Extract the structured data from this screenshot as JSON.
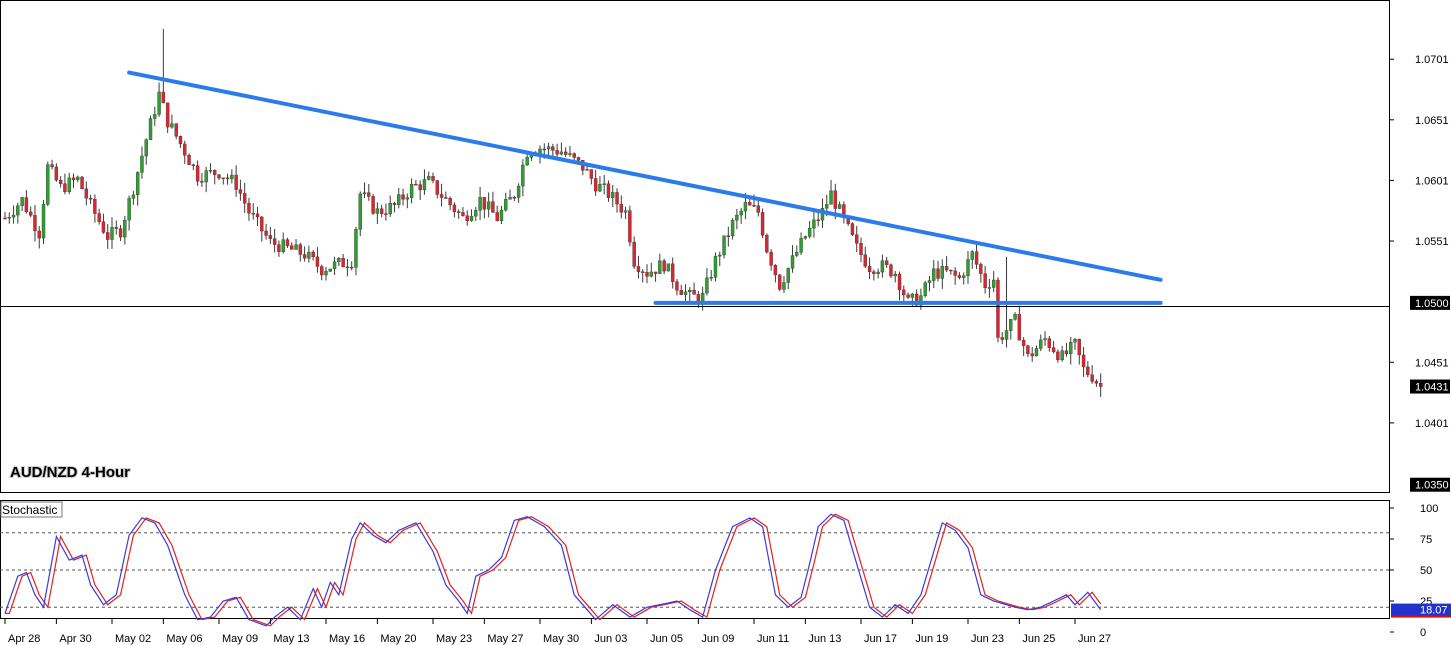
{
  "chart_data": {
    "type": "candlestick",
    "title": "AUD/NZD 4-Hour",
    "price_axis": {
      "ticks": [
        "1.0701",
        "1.0651",
        "1.0601",
        "1.0551",
        "1.0451",
        "1.0401"
      ],
      "tick_values": [
        1.0701,
        1.0651,
        1.0601,
        1.0551,
        1.0451,
        1.0401
      ],
      "ylim": [
        1.0344,
        1.0749
      ],
      "boxes": [
        {
          "label": "1.0500",
          "value": 1.05,
          "style": "horizontal-line"
        },
        {
          "label": "1.0431",
          "value": 1.0431,
          "style": "last-price"
        },
        {
          "label": "1.0350",
          "value": 1.035,
          "style": "panel-bottom"
        }
      ]
    },
    "x_axis": {
      "labels": [
        "Apr 28",
        "Apr 30",
        "May 02",
        "May 06",
        "May 09",
        "May 13",
        "May 16",
        "May 20",
        "May 23",
        "May 27",
        "May 30",
        "Jun 03",
        "Jun 05",
        "Jun 09",
        "Jun 11",
        "Jun 13",
        "Jun 17",
        "Jun 19",
        "Jun 23",
        "Jun 25",
        "Jun 27"
      ],
      "bar_index": [
        0,
        12,
        25,
        37,
        50,
        62,
        75,
        87,
        100,
        112,
        125,
        137,
        150,
        162,
        175,
        187,
        200,
        212,
        225,
        237,
        250
      ]
    },
    "close_path": [
      [
        0,
        1.057
      ],
      [
        4,
        1.0585
      ],
      [
        8,
        1.0558
      ],
      [
        10,
        1.0612
      ],
      [
        13,
        1.0595
      ],
      [
        17,
        1.0602
      ],
      [
        20,
        1.058
      ],
      [
        24,
        1.0555
      ],
      [
        27,
        1.056
      ],
      [
        30,
        1.0595
      ],
      [
        33,
        1.0635
      ],
      [
        36,
        1.0672
      ],
      [
        38,
        1.065
      ],
      [
        42,
        1.0625
      ],
      [
        45,
        1.0605
      ],
      [
        50,
        1.0608
      ],
      [
        54,
        1.0598
      ],
      [
        57,
        1.0575
      ],
      [
        62,
        1.055
      ],
      [
        66,
        1.0545
      ],
      [
        70,
        1.054
      ],
      [
        74,
        1.0528
      ],
      [
        78,
        1.0532
      ],
      [
        81,
        1.0535
      ],
      [
        83,
        1.059
      ],
      [
        87,
        1.0575
      ],
      [
        91,
        1.058
      ],
      [
        95,
        1.0595
      ],
      [
        99,
        1.06
      ],
      [
        103,
        1.0585
      ],
      [
        107,
        1.057
      ],
      [
        111,
        1.0585
      ],
      [
        115,
        1.057
      ],
      [
        119,
        1.059
      ],
      [
        122,
        1.0625
      ],
      [
        125,
        1.0628
      ],
      [
        130,
        1.0625
      ],
      [
        135,
        1.0612
      ],
      [
        138,
        1.0598
      ],
      [
        141,
        1.059
      ],
      [
        145,
        1.0575
      ],
      [
        147,
        1.0535
      ],
      [
        150,
        1.0525
      ],
      [
        154,
        1.0532
      ],
      [
        157,
        1.0515
      ],
      [
        160,
        1.0505
      ],
      [
        163,
        1.0505
      ],
      [
        166,
        1.0535
      ],
      [
        170,
        1.0565
      ],
      [
        173,
        1.058
      ],
      [
        176,
        1.0575
      ],
      [
        178,
        1.0545
      ],
      [
        181,
        1.0515
      ],
      [
        184,
        1.0535
      ],
      [
        187,
        1.0555
      ],
      [
        191,
        1.0575
      ],
      [
        193,
        1.059
      ],
      [
        196,
        1.0568
      ],
      [
        199,
        1.0545
      ],
      [
        202,
        1.053
      ],
      [
        205,
        1.053
      ],
      [
        208,
        1.0525
      ],
      [
        211,
        1.05
      ],
      [
        214,
        1.0505
      ],
      [
        217,
        1.0525
      ],
      [
        220,
        1.0525
      ],
      [
        223,
        1.052
      ],
      [
        226,
        1.054
      ],
      [
        229,
        1.0515
      ],
      [
        231,
        1.052
      ],
      [
        232,
        1.047
      ],
      [
        236,
        1.0485
      ],
      [
        239,
        1.0455
      ],
      [
        243,
        1.047
      ],
      [
        247,
        1.0455
      ],
      [
        250,
        1.0465
      ],
      [
        252,
        1.0445
      ],
      [
        254,
        1.044
      ],
      [
        256,
        1.0431
      ]
    ],
    "spikes": [
      {
        "bar": 37,
        "high": 1.0726
      },
      {
        "bar": 137,
        "high": 1.0605
      },
      {
        "bar": 234,
        "high": 1.0538
      }
    ],
    "trendlines": [
      {
        "name": "descending-resistance",
        "from": [
          29,
          1.069
        ],
        "to": [
          270,
          1.0519
        ],
        "color": "#2b7ce8"
      },
      {
        "name": "horizontal-support",
        "from": [
          152,
          1.05
        ],
        "to": [
          270,
          1.05
        ],
        "color": "#2b7ce8"
      }
    ],
    "colors": {
      "bull_body": "#2ea02e",
      "bear_body": "#e0242d",
      "wick": "#3a3a3a",
      "trendline": "#2b7ce8",
      "stoch_main": "#3a3ae0",
      "stoch_signal": "#e52020",
      "level_line": "#555555"
    },
    "stochastic": {
      "label": "Stochastic",
      "ylim": [
        0,
        100
      ],
      "ticks": [
        "100",
        "75",
        "50",
        "25",
        "0"
      ],
      "tick_values": [
        100,
        75,
        50,
        25,
        0
      ],
      "levels": [
        20,
        50,
        80
      ],
      "current": "18.07",
      "main_path": [
        [
          0,
          15
        ],
        [
          3,
          45
        ],
        [
          5,
          48
        ],
        [
          7,
          30
        ],
        [
          9,
          20
        ],
        [
          12,
          77
        ],
        [
          15,
          58
        ],
        [
          18,
          62
        ],
        [
          20,
          38
        ],
        [
          23,
          22
        ],
        [
          26,
          30
        ],
        [
          29,
          78
        ],
        [
          32,
          92
        ],
        [
          35,
          88
        ],
        [
          38,
          70
        ],
        [
          42,
          30
        ],
        [
          45,
          10
        ],
        [
          48,
          12
        ],
        [
          51,
          25
        ],
        [
          54,
          28
        ],
        [
          57,
          10
        ],
        [
          61,
          5
        ],
        [
          63,
          12
        ],
        [
          66,
          20
        ],
        [
          69,
          10
        ],
        [
          72,
          35
        ],
        [
          74,
          20
        ],
        [
          76,
          40
        ],
        [
          78,
          30
        ],
        [
          81,
          75
        ],
        [
          83,
          88
        ],
        [
          86,
          78
        ],
        [
          89,
          72
        ],
        [
          92,
          82
        ],
        [
          96,
          88
        ],
        [
          100,
          65
        ],
        [
          103,
          38
        ],
        [
          106,
          25
        ],
        [
          108,
          15
        ],
        [
          110,
          45
        ],
        [
          113,
          50
        ],
        [
          116,
          60
        ],
        [
          119,
          90
        ],
        [
          122,
          93
        ],
        [
          126,
          85
        ],
        [
          130,
          70
        ],
        [
          133,
          30
        ],
        [
          135,
          22
        ],
        [
          138,
          10
        ],
        [
          142,
          22
        ],
        [
          146,
          12
        ],
        [
          150,
          20
        ],
        [
          153,
          22
        ],
        [
          157,
          25
        ],
        [
          160,
          18
        ],
        [
          163,
          12
        ],
        [
          166,
          50
        ],
        [
          170,
          85
        ],
        [
          174,
          92
        ],
        [
          177,
          85
        ],
        [
          180,
          30
        ],
        [
          183,
          20
        ],
        [
          186,
          28
        ],
        [
          188,
          55
        ],
        [
          190,
          85
        ],
        [
          193,
          95
        ],
        [
          196,
          90
        ],
        [
          199,
          55
        ],
        [
          202,
          20
        ],
        [
          205,
          12
        ],
        [
          208,
          22
        ],
        [
          211,
          15
        ],
        [
          214,
          30
        ],
        [
          217,
          65
        ],
        [
          219,
          88
        ],
        [
          222,
          82
        ],
        [
          225,
          68
        ],
        [
          228,
          30
        ],
        [
          231,
          25
        ],
        [
          234,
          22
        ],
        [
          236,
          20
        ],
        [
          239,
          18
        ],
        [
          242,
          20
        ],
        [
          245,
          25
        ],
        [
          248,
          30
        ],
        [
          250,
          22
        ],
        [
          253,
          32
        ],
        [
          256,
          18
        ]
      ],
      "signal_shift": 1
    },
    "grid": false,
    "legend": "none"
  }
}
